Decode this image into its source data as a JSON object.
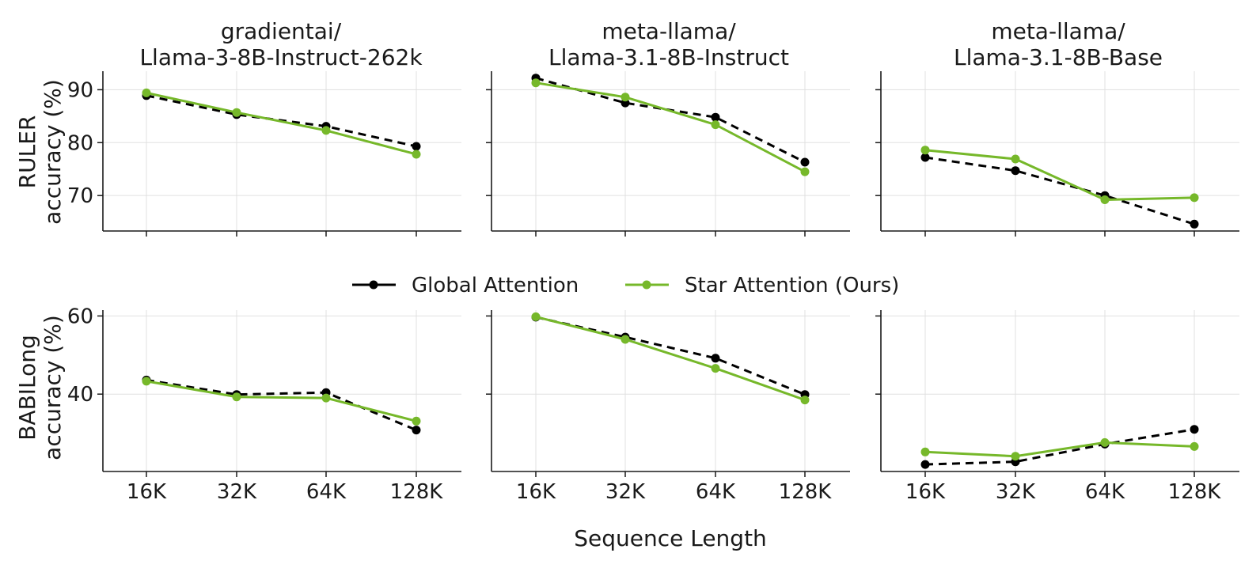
{
  "chart_data": {
    "type": "line",
    "xlabel": "Sequence Length",
    "categories": [
      "16K",
      "32K",
      "64K",
      "128K"
    ],
    "legend": [
      {
        "name": "Global Attention",
        "color": "#000000",
        "dash": "dashed",
        "placement": "center"
      },
      {
        "name": "Star Attention (Ours)",
        "color": "#76b82a",
        "dash": "solid",
        "placement": "center"
      }
    ],
    "columns": [
      {
        "title_line1": "gradientai/",
        "title_line2": "Llama-3-8B-Instruct-262k"
      },
      {
        "title_line1": "meta-llama/",
        "title_line2": "Llama-3.1-8B-Instruct"
      },
      {
        "title_line1": "meta-llama/",
        "title_line2": "Llama-3.1-8B-Base"
      }
    ],
    "rows": [
      {
        "ylabel_line1": "RULER",
        "ylabel_line2": "accuracy (%)",
        "ylim": [
          63.3,
          93.5
        ],
        "yticks": [
          70,
          80,
          90
        ],
        "panels": [
          {
            "series": [
              {
                "name": "Global Attention",
                "values": [
                  88.9,
                  85.3,
                  83.1,
                  79.3
                ]
              },
              {
                "name": "Star Attention (Ours)",
                "values": [
                  89.4,
                  85.7,
                  82.3,
                  77.8
                ]
              }
            ]
          },
          {
            "series": [
              {
                "name": "Global Attention",
                "values": [
                  92.2,
                  87.5,
                  84.8,
                  76.3
                ]
              },
              {
                "name": "Star Attention (Ours)",
                "values": [
                  91.3,
                  88.6,
                  83.4,
                  74.5
                ]
              }
            ]
          },
          {
            "series": [
              {
                "name": "Global Attention",
                "values": [
                  77.2,
                  74.7,
                  70.0,
                  64.6
                ]
              },
              {
                "name": "Star Attention (Ours)",
                "values": [
                  78.6,
                  76.9,
                  69.2,
                  69.6
                ]
              }
            ]
          }
        ]
      },
      {
        "ylabel_line1": "BABILong",
        "ylabel_line2": "accuracy (%)",
        "ylim": [
          20.2,
          61.5
        ],
        "yticks": [
          40,
          60
        ],
        "panels": [
          {
            "series": [
              {
                "name": "Global Attention",
                "values": [
                  43.6,
                  39.9,
                  40.4,
                  30.8
                ]
              },
              {
                "name": "Star Attention (Ours)",
                "values": [
                  43.3,
                  39.3,
                  39.0,
                  33.1
                ]
              }
            ]
          },
          {
            "series": [
              {
                "name": "Global Attention",
                "values": [
                  59.7,
                  54.6,
                  49.2,
                  39.9
                ]
              },
              {
                "name": "Star Attention (Ours)",
                "values": [
                  59.8,
                  54.0,
                  46.6,
                  38.5
                ]
              }
            ]
          },
          {
            "series": [
              {
                "name": "Global Attention",
                "values": [
                  22.0,
                  22.7,
                  27.2,
                  31.0
                ]
              },
              {
                "name": "Star Attention (Ours)",
                "values": [
                  25.2,
                  24.1,
                  27.6,
                  26.6
                ]
              }
            ]
          }
        ]
      }
    ],
    "grid": true
  }
}
